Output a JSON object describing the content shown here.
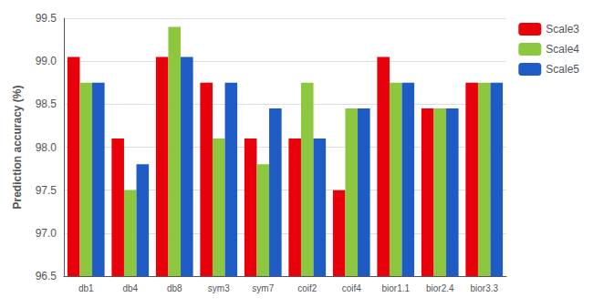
{
  "chart_data": {
    "type": "bar",
    "categories": [
      "db1",
      "db4",
      "db8",
      "sym3",
      "sym7",
      "coif2",
      "coif4",
      "bior1.1",
      "bior2.4",
      "bior3.3"
    ],
    "series": [
      {
        "name": "Scale3",
        "color": "#e8000a",
        "values": [
          99.05,
          98.1,
          99.05,
          98.75,
          98.1,
          98.1,
          97.5,
          99.05,
          98.45,
          98.75
        ]
      },
      {
        "name": "Scale4",
        "color": "#8dc63f",
        "values": [
          98.75,
          97.5,
          99.4,
          98.1,
          97.8,
          98.75,
          98.45,
          98.75,
          98.45,
          98.75
        ]
      },
      {
        "name": "Scale5",
        "color": "#1f5bc4",
        "values": [
          98.75,
          97.8,
          99.05,
          98.75,
          98.45,
          98.1,
          98.45,
          98.75,
          98.45,
          98.75
        ]
      }
    ],
    "ylabel": "Prediction accuracy (%)",
    "ylim": [
      96.5,
      99.5
    ],
    "yticks": [
      96.5,
      {
        "value": 97.0,
        "label": "97.0"
      },
      97.5,
      {
        "value": 98.0,
        "label": "98.0"
      },
      98.5,
      {
        "value": 99.0,
        "label": "99.0"
      },
      99.5
    ],
    "grid": true,
    "legend": "right"
  }
}
